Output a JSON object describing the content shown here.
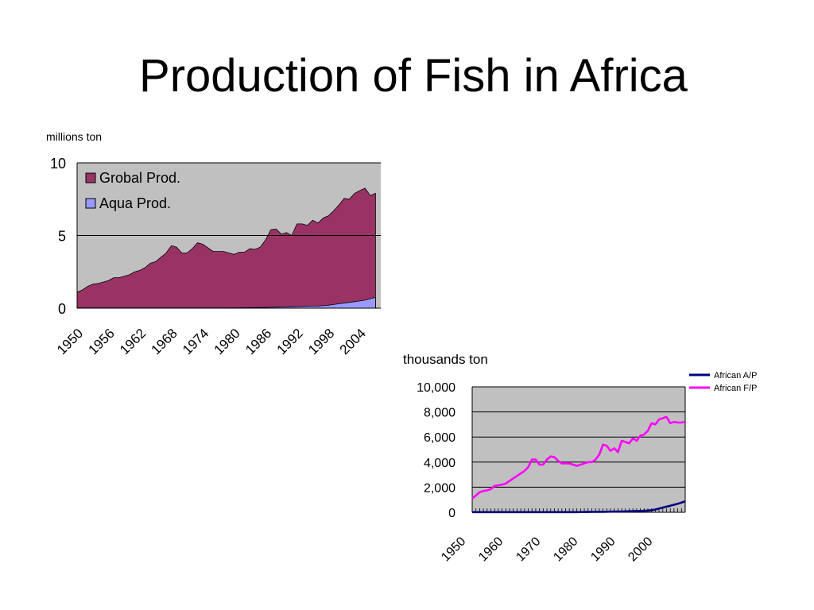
{
  "slide": {
    "title": "Production of Fish in Africa"
  },
  "chart_data": [
    {
      "type": "area",
      "ylabel": "millions ton",
      "ylim": [
        0,
        10
      ],
      "xlim": [
        1950,
        2008
      ],
      "grid": true,
      "legend_placement": "top-left",
      "y_ticks": [
        "0",
        "5",
        "10"
      ],
      "x_ticks": [
        "1950",
        "1956",
        "1962",
        "1968",
        "1974",
        "1980",
        "1986",
        "1992",
        "1998",
        "2004"
      ],
      "plot_background": "#c0c0c0",
      "x_start": 1950,
      "series": [
        {
          "name": "Grobal Prod.",
          "color": "#993366",
          "values": [
            1.1,
            1.25,
            1.5,
            1.65,
            1.7,
            1.8,
            1.9,
            2.1,
            2.1,
            2.2,
            2.3,
            2.5,
            2.6,
            2.8,
            3.1,
            3.2,
            3.5,
            3.8,
            4.3,
            4.2,
            3.8,
            3.8,
            4.1,
            4.5,
            4.4,
            4.15,
            3.9,
            3.9,
            3.9,
            3.8,
            3.7,
            3.85,
            3.85,
            4.1,
            4.05,
            4.2,
            4.7,
            5.4,
            5.45,
            5.1,
            5.2,
            5.0,
            5.8,
            5.8,
            5.7,
            6.05,
            5.85,
            6.2,
            6.35,
            6.7,
            7.1,
            7.55,
            7.5,
            7.9,
            8.1,
            8.25,
            7.75,
            7.9
          ]
        },
        {
          "name": "Aqua Prod.",
          "color": "#9999ff",
          "values": [
            0.02,
            0.02,
            0.02,
            0.02,
            0.02,
            0.02,
            0.02,
            0.02,
            0.02,
            0.02,
            0.02,
            0.02,
            0.02,
            0.02,
            0.02,
            0.02,
            0.02,
            0.02,
            0.02,
            0.02,
            0.02,
            0.02,
            0.02,
            0.02,
            0.02,
            0.02,
            0.02,
            0.02,
            0.02,
            0.02,
            0.03,
            0.03,
            0.03,
            0.04,
            0.04,
            0.05,
            0.05,
            0.06,
            0.07,
            0.08,
            0.09,
            0.1,
            0.11,
            0.12,
            0.13,
            0.14,
            0.15,
            0.17,
            0.2,
            0.25,
            0.3,
            0.35,
            0.4,
            0.45,
            0.5,
            0.55,
            0.65,
            0.75
          ]
        }
      ]
    },
    {
      "type": "line",
      "ylabel": "thousands ton",
      "ylim": [
        0,
        10000
      ],
      "xlim": [
        1950,
        2007
      ],
      "grid": true,
      "legend_placement": "top-right",
      "y_ticks": [
        "0",
        "2,000",
        "4,000",
        "6,000",
        "8,000",
        "10,000"
      ],
      "x_ticks": [
        "1950",
        "1960",
        "1970",
        "1980",
        "1990",
        "2000"
      ],
      "plot_background": "#c0c0c0",
      "x_start": 1950,
      "series": [
        {
          "name": "African A/P",
          "color": "#000080",
          "values": [
            10,
            10,
            10,
            10,
            10,
            10,
            10,
            10,
            10,
            10,
            10,
            10,
            10,
            10,
            10,
            10,
            10,
            10,
            10,
            10,
            10,
            10,
            10,
            10,
            10,
            10,
            15,
            15,
            15,
            20,
            20,
            25,
            30,
            30,
            35,
            40,
            45,
            50,
            55,
            60,
            65,
            70,
            80,
            90,
            100,
            110,
            120,
            140,
            170,
            220,
            300,
            380,
            450,
            520,
            600,
            680,
            780,
            870
          ]
        },
        {
          "name": "African F/P",
          "color": "#ff00ff",
          "values": [
            1100,
            1350,
            1600,
            1700,
            1750,
            1850,
            2100,
            2150,
            2200,
            2300,
            2500,
            2700,
            2900,
            3100,
            3300,
            3600,
            4200,
            4200,
            3800,
            3800,
            4200,
            4450,
            4400,
            4100,
            3900,
            3900,
            3900,
            3800,
            3700,
            3800,
            3900,
            4000,
            4000,
            4200,
            4600,
            5400,
            5300,
            4900,
            5100,
            4800,
            5700,
            5600,
            5500,
            5900,
            5700,
            6100,
            6200,
            6500,
            7100,
            7000,
            7400,
            7500,
            7600,
            7100,
            7200,
            7150,
            7150,
            7200
          ]
        }
      ]
    }
  ]
}
